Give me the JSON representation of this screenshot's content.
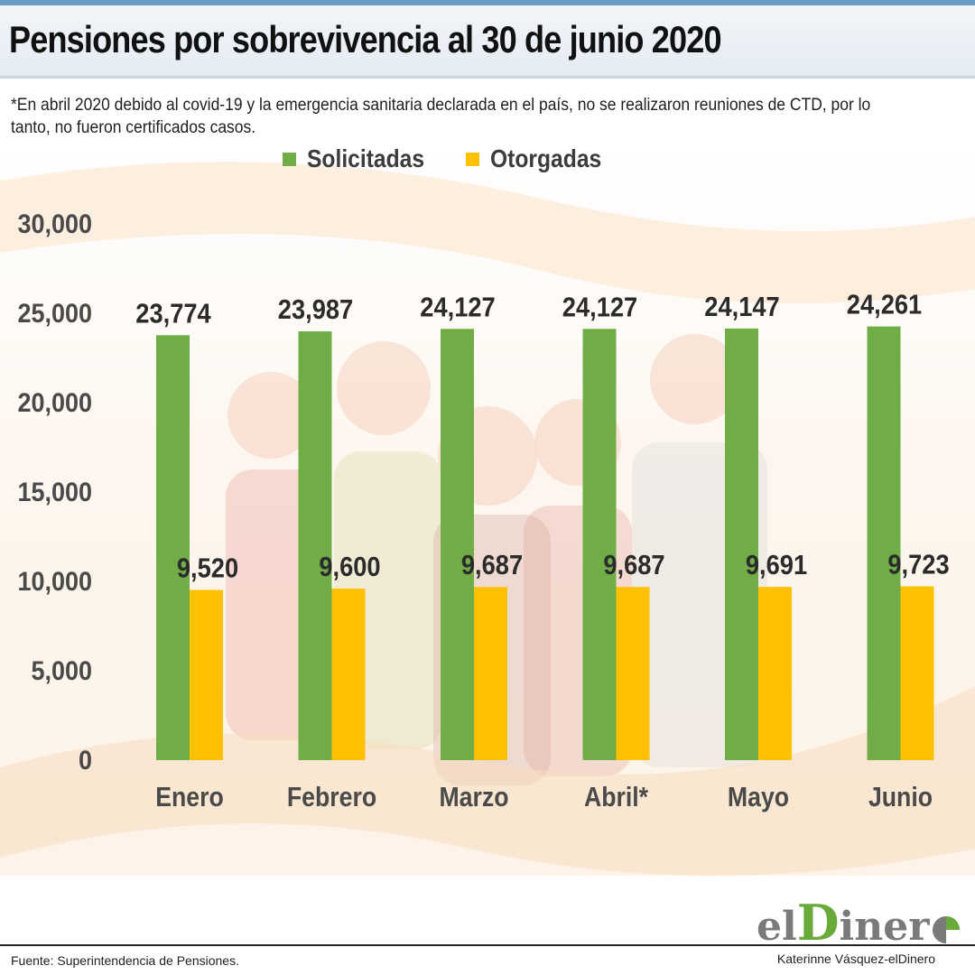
{
  "header": {
    "title": "Pensiones por sobrevivencia al 30 de junio 2020"
  },
  "note": {
    "text": "*En abril 2020 debido al covid-19 y la emergencia sanitaria declarada en el país, no se realizaron reuniones de CTD, por lo tanto, no fueron certificados casos."
  },
  "colors": {
    "solicitadas": "#70ad47",
    "otorgadas": "#ffc000",
    "axis_text": "#4a4a4a",
    "value_text": "#2b2b2b"
  },
  "chart_data": {
    "type": "bar",
    "categories": [
      "Enero",
      "Febrero",
      "Marzo",
      "Abril*",
      "Mayo",
      "Junio"
    ],
    "series": [
      {
        "name": "Solicitadas",
        "values": [
          23774,
          23987,
          24127,
          24127,
          24147,
          24261
        ]
      },
      {
        "name": "Otorgadas",
        "values": [
          9520,
          9600,
          9687,
          9687,
          9691,
          9723
        ]
      }
    ],
    "value_labels": [
      [
        "23,774",
        "23,987",
        "24,127",
        "24,127",
        "24,147",
        "24,261"
      ],
      [
        "9,520",
        "9,600",
        "9,687",
        "9,687",
        "9,691",
        "9,723"
      ]
    ],
    "y_ticks": [
      0,
      5000,
      10000,
      15000,
      20000,
      25000,
      30000
    ],
    "y_tick_labels": [
      "0",
      "5,000",
      "10,000",
      "15,000",
      "20,000",
      "25,000",
      "30,000"
    ],
    "ylim": [
      0,
      30000
    ],
    "grid": false,
    "legend_position": "top-center",
    "title": "Pensiones por sobrevivencia al 30 de junio 2020",
    "xlabel": "",
    "ylabel": ""
  },
  "logo": {
    "el": "el",
    "d": "D",
    "rest": "iner"
  },
  "footer": {
    "source": "Fuente: Superintendencia de Pensiones.",
    "credit": "Katerinne Vásquez-elDinero"
  }
}
